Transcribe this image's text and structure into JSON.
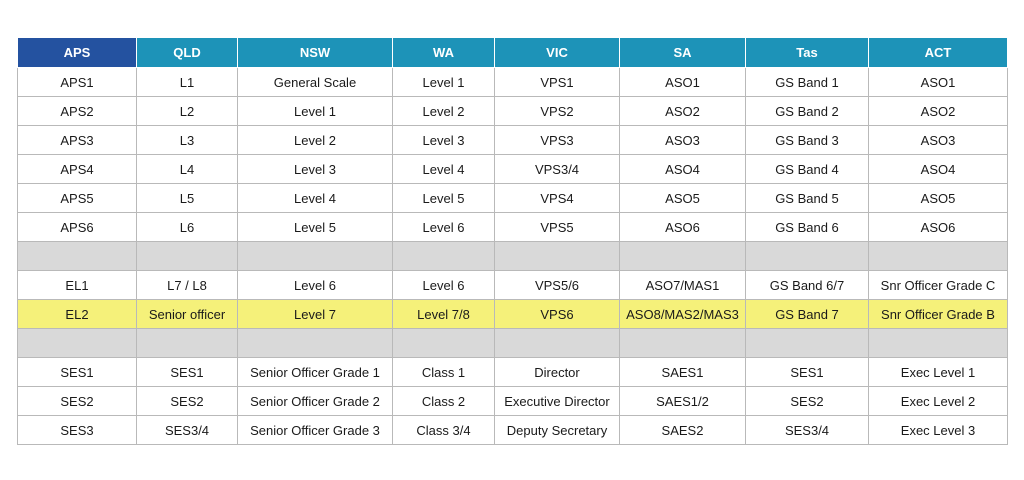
{
  "colors": {
    "aps_header": "#2452a0",
    "header": "#1d93b8",
    "highlight": "#f5f17a",
    "separator": "#d9d9d9"
  },
  "headers": [
    "APS",
    "QLD",
    "NSW",
    "WA",
    "VIC",
    "SA",
    "Tas",
    "ACT"
  ],
  "rows": [
    [
      "APS1",
      "L1",
      "General Scale",
      "Level 1",
      "VPS1",
      "ASO1",
      "GS Band 1",
      "ASO1"
    ],
    [
      "APS2",
      "L2",
      "Level 1",
      "Level 2",
      "VPS2",
      "ASO2",
      "GS Band 2",
      "ASO2"
    ],
    [
      "APS3",
      "L3",
      "Level 2",
      "Level 3",
      "VPS3",
      "ASO3",
      "GS Band 3",
      "ASO3"
    ],
    [
      "APS4",
      "L4",
      "Level 3",
      "Level 4",
      "VPS3/4",
      "ASO4",
      "GS Band 4",
      "ASO4"
    ],
    [
      "APS5",
      "L5",
      "Level 4",
      "Level 5",
      "VPS4",
      "ASO5",
      "GS Band 5",
      "ASO5"
    ],
    [
      "APS6",
      "L6",
      "Level 5",
      "Level 6",
      "VPS5",
      "ASO6",
      "GS Band 6",
      "ASO6"
    ],
    [
      "",
      "",
      "",
      "",
      "",
      "",
      "",
      ""
    ],
    [
      "EL1",
      "L7 / L8",
      "Level 6",
      "Level 6",
      "VPS5/6",
      "ASO7/MAS1",
      "GS Band 6/7",
      "Snr Officer Grade C"
    ],
    [
      "EL2",
      "Senior officer",
      "Level 7",
      "Level 7/8",
      "VPS6",
      "ASO8/MAS2/MAS3",
      "GS Band 7",
      "Snr Officer Grade B"
    ],
    [
      "",
      "",
      "",
      "",
      "",
      "",
      "",
      ""
    ],
    [
      "SES1",
      "SES1",
      "Senior Officer Grade 1",
      "Class 1",
      "Director",
      "SAES1",
      "SES1",
      "Exec Level 1"
    ],
    [
      "SES2",
      "SES2",
      "Senior Officer Grade 2",
      "Class 2",
      "Executive Director",
      "SAES1/2",
      "SES2",
      "Exec Level 2"
    ],
    [
      "SES3",
      "SES3/4",
      "Senior Officer Grade 3",
      "Class 3/4",
      "Deputy Secretary",
      "SAES2",
      "SES3/4",
      "Exec Level 3"
    ]
  ]
}
